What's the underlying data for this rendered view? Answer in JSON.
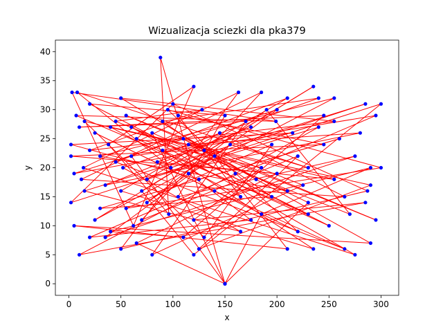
{
  "chart_data": {
    "type": "scatter",
    "title": "Wizualizacja sciezki dla pka379",
    "xlabel": "x",
    "ylabel": "y",
    "xlim": [
      -13,
      317
    ],
    "ylim": [
      -2,
      42
    ],
    "x_ticks": [
      0,
      50,
      100,
      150,
      200,
      250,
      300
    ],
    "y_ticks": [
      0,
      5,
      10,
      15,
      20,
      25,
      30,
      35,
      40
    ],
    "grid": false,
    "legend": "none",
    "point_color": "#0000ff",
    "line_color": "#ff0000",
    "series": [
      {
        "mode": "lines+markers",
        "points": [
          [
            150,
            0
          ],
          [
            88,
            39
          ],
          [
            96,
            12
          ],
          [
            38,
            24
          ],
          [
            120,
            34
          ],
          [
            62,
            10
          ],
          [
            3,
            33
          ],
          [
            199,
            28
          ],
          [
            7,
            29
          ],
          [
            230,
            12
          ],
          [
            60,
            27
          ],
          [
            275,
            5
          ],
          [
            14,
            20
          ],
          [
            163,
            33
          ],
          [
            50,
            6
          ],
          [
            287,
            16
          ],
          [
            100,
            31
          ],
          [
            2,
            14
          ],
          [
            300,
            31
          ],
          [
            120,
            5
          ],
          [
            70,
            16
          ],
          [
            235,
            34
          ],
          [
            25,
            11
          ],
          [
            140,
            22
          ],
          [
            210,
            6
          ],
          [
            5,
            10
          ],
          [
            290,
            7
          ],
          [
            110,
            25
          ],
          [
            180,
            18
          ],
          [
            50,
            32
          ],
          [
            255,
            28
          ],
          [
            20,
            23
          ],
          [
            128,
            30
          ],
          [
            45,
            28
          ],
          [
            270,
            12
          ],
          [
            190,
            30
          ],
          [
            75,
            14
          ],
          [
            155,
            24
          ],
          [
            230,
            20
          ],
          [
            8,
            33
          ],
          [
            98,
            20
          ],
          [
            285,
            31
          ],
          [
            15,
            16
          ],
          [
            165,
            9
          ],
          [
            52,
            20
          ],
          [
            240,
            32
          ],
          [
            90,
            28
          ],
          [
            195,
            15
          ],
          [
            30,
            13
          ],
          [
            260,
            25
          ],
          [
            125,
            18
          ],
          [
            2,
            24
          ],
          [
            215,
            26
          ],
          [
            60,
            22
          ],
          [
            150,
            0
          ],
          [
            185,
            12
          ],
          [
            290,
            20
          ],
          [
            40,
            9
          ],
          [
            110,
            8
          ],
          [
            245,
            29
          ],
          [
            10,
            27
          ],
          [
            170,
            28
          ],
          [
            80,
            5
          ],
          [
            225,
            17
          ],
          [
            55,
            29
          ],
          [
            295,
            11
          ],
          [
            130,
            23
          ],
          [
            5,
            19
          ],
          [
            200,
            30
          ],
          [
            35,
            8
          ],
          [
            275,
            22
          ],
          [
            105,
            15
          ],
          [
            150,
            29
          ],
          [
            20,
            31
          ],
          [
            250,
            10
          ],
          [
            65,
            25
          ],
          [
            185,
            20
          ],
          [
            120,
            11
          ],
          [
            285,
            14
          ],
          [
            10,
            5
          ],
          [
            160,
            19
          ],
          [
            240,
            27
          ],
          [
            75,
            18
          ],
          [
            210,
            32
          ],
          [
            45,
            21
          ],
          [
            265,
            6
          ],
          [
            140,
            16
          ],
          [
            25,
            26
          ],
          [
            220,
            9
          ],
          [
            95,
            30
          ],
          [
            300,
            20
          ],
          [
            55,
            13
          ],
          [
            195,
            24
          ],
          [
            130,
            8
          ],
          [
            15,
            28
          ],
          [
            255,
            18
          ],
          [
            85,
            21
          ],
          [
            175,
            27
          ],
          [
            35,
            17
          ],
          [
            280,
            26
          ],
          [
            115,
            24
          ],
          [
            230,
            14
          ],
          [
            150,
            0
          ],
          [
            65,
            7
          ],
          [
            200,
            19
          ],
          [
            2,
            22
          ],
          [
            245,
            24
          ],
          [
            105,
            29
          ],
          [
            165,
            15
          ],
          [
            40,
            27
          ],
          [
            290,
            17
          ],
          [
            125,
            6
          ],
          [
            220,
            22
          ],
          [
            70,
            11
          ],
          [
            185,
            33
          ],
          [
            12,
            18
          ],
          [
            265,
            15
          ],
          [
            145,
            26
          ],
          [
            50,
            16
          ],
          [
            235,
            6
          ],
          [
            90,
            23
          ],
          [
            295,
            29
          ],
          [
            20,
            8
          ],
          [
            175,
            11
          ],
          [
            115,
            19
          ],
          [
            255,
            32
          ],
          [
            30,
            22
          ],
          [
            210,
            16
          ],
          [
            80,
            26
          ],
          [
            150,
            0
          ]
        ]
      }
    ]
  }
}
